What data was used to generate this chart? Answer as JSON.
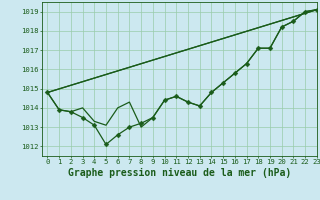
{
  "background_color": "#cce8f0",
  "grid_color": "#99ccaa",
  "line_color": "#1a5c1a",
  "title": "Graphe pression niveau de la mer (hPa)",
  "xlim": [
    -0.5,
    23
  ],
  "ylim": [
    1011.5,
    1019.5
  ],
  "yticks": [
    1012,
    1013,
    1014,
    1015,
    1016,
    1017,
    1018,
    1019
  ],
  "xticks": [
    0,
    1,
    2,
    3,
    4,
    5,
    6,
    7,
    8,
    9,
    10,
    11,
    12,
    13,
    14,
    15,
    16,
    17,
    18,
    19,
    20,
    21,
    22,
    23
  ],
  "marker_line": [
    1014.8,
    1013.9,
    1013.8,
    1013.5,
    1013.1,
    1012.1,
    1012.6,
    1013.0,
    1013.2,
    1013.5,
    1014.4,
    1014.6,
    1014.3,
    1014.1,
    1014.8,
    1015.3,
    1015.8,
    1016.3,
    1017.1,
    1017.1,
    1018.2,
    1018.5,
    1019.0,
    1019.1
  ],
  "smooth_line1": [
    1014.8,
    1013.9,
    1013.8,
    1014.0,
    1013.3,
    1013.1,
    1014.0,
    1014.3,
    1013.0,
    1013.5,
    1014.4,
    1014.6,
    1014.3,
    1014.1,
    1014.8,
    1015.3,
    1015.8,
    1016.3,
    1017.1,
    1017.1,
    1018.2,
    1018.5,
    1019.0,
    1019.1
  ],
  "straight_line1": [
    [
      0,
      23
    ],
    [
      1014.8,
      1019.1
    ]
  ],
  "straight_line2": [
    [
      0,
      23
    ],
    [
      1014.8,
      1019.1
    ]
  ],
  "marker_size": 2.5,
  "linewidth": 0.9,
  "title_fontsize": 7.0,
  "tick_fontsize": 5.2
}
